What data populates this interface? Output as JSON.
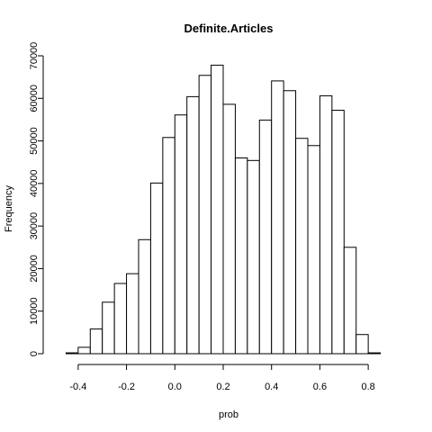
{
  "chart_data": {
    "type": "bar",
    "title": "Definite.Articles",
    "xlabel": "prob",
    "ylabel": "Frequency",
    "bin_width": 0.05,
    "bin_starts": [
      -0.45,
      -0.4,
      -0.35,
      -0.3,
      -0.25,
      -0.2,
      -0.15,
      -0.1,
      -0.05,
      0.0,
      0.05,
      0.1,
      0.15,
      0.2,
      0.25,
      0.3,
      0.35,
      0.4,
      0.45,
      0.5,
      0.55,
      0.6,
      0.65,
      0.7,
      0.75,
      0.8
    ],
    "values": [
      200,
      1500,
      5800,
      12100,
      16500,
      18800,
      26800,
      40100,
      50800,
      56100,
      60400,
      65400,
      67800,
      58600,
      46000,
      45400,
      54900,
      64100,
      61800,
      50600,
      48900,
      60600,
      57200,
      25000,
      4500,
      200
    ],
    "xlim": [
      -0.5,
      0.9
    ],
    "ylim": [
      0,
      70000
    ],
    "x_ticks": [
      -0.4,
      -0.2,
      0.0,
      0.2,
      0.4,
      0.6,
      0.8
    ],
    "x_tick_labels": [
      "-0.4",
      "-0.2",
      "0.0",
      "0.2",
      "0.4",
      "0.6",
      "0.8"
    ],
    "y_ticks": [
      0,
      10000,
      20000,
      30000,
      40000,
      50000,
      60000,
      70000
    ],
    "y_tick_labels": [
      "0",
      "10000",
      "20000",
      "30000",
      "40000",
      "50000",
      "60000",
      "70000"
    ]
  }
}
